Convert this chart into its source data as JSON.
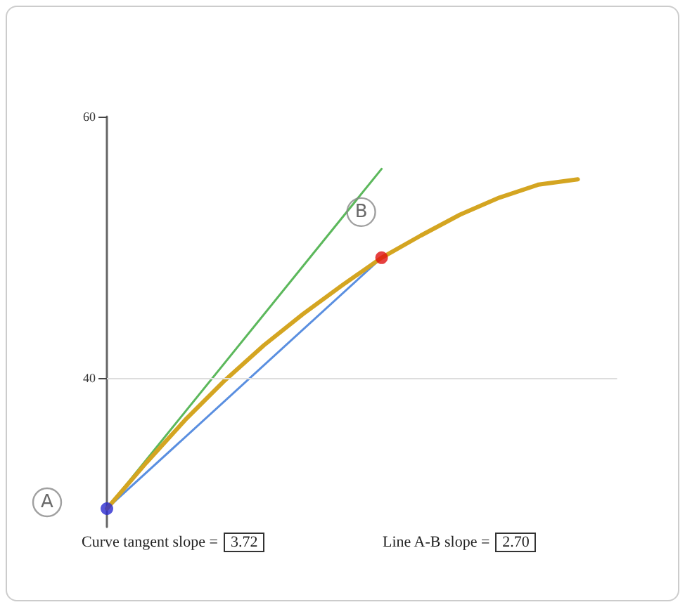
{
  "chart_data": {
    "type": "line",
    "categories": [
      null,
      null,
      null,
      null,
      null,
      null,
      null,
      null,
      null,
      null,
      null,
      null,
      null,
      null
    ],
    "ylim": [
      28.6,
      60
    ],
    "yticks": [
      40,
      60
    ],
    "grid": "y",
    "series": [
      {
        "color": "#d4a521",
        "values": [
          30,
          33.5,
          36.8,
          39.8,
          42.5,
          44.9,
          47.1,
          49.2,
          50.9,
          52.5,
          53.8,
          54.8,
          55.2,
          null
        ]
      },
      {
        "color": "#5cb85c",
        "values": [
          30,
          null,
          null,
          null,
          null,
          null,
          null,
          56,
          null,
          null,
          null,
          null,
          null,
          null
        ]
      },
      {
        "color": "#5a8fe0",
        "values": [
          30,
          null,
          null,
          null,
          null,
          null,
          null,
          49.2,
          null,
          null,
          null,
          null,
          null,
          null
        ]
      },
      {
        "type": "scatter",
        "name": "A",
        "color": "#2a2ad0",
        "values": [
          30,
          null,
          null,
          null,
          null,
          null,
          null,
          null,
          null,
          null,
          null,
          null,
          null,
          null
        ]
      },
      {
        "type": "scatter",
        "name": "B",
        "color": "#e01010",
        "values": [
          null,
          null,
          null,
          null,
          null,
          null,
          null,
          49.2,
          null,
          null,
          null,
          null,
          null,
          null
        ]
      }
    ],
    "annotations": [
      "Curve tangent slope = 3.72",
      "Line A-B slope = 2.70"
    ]
  }
}
